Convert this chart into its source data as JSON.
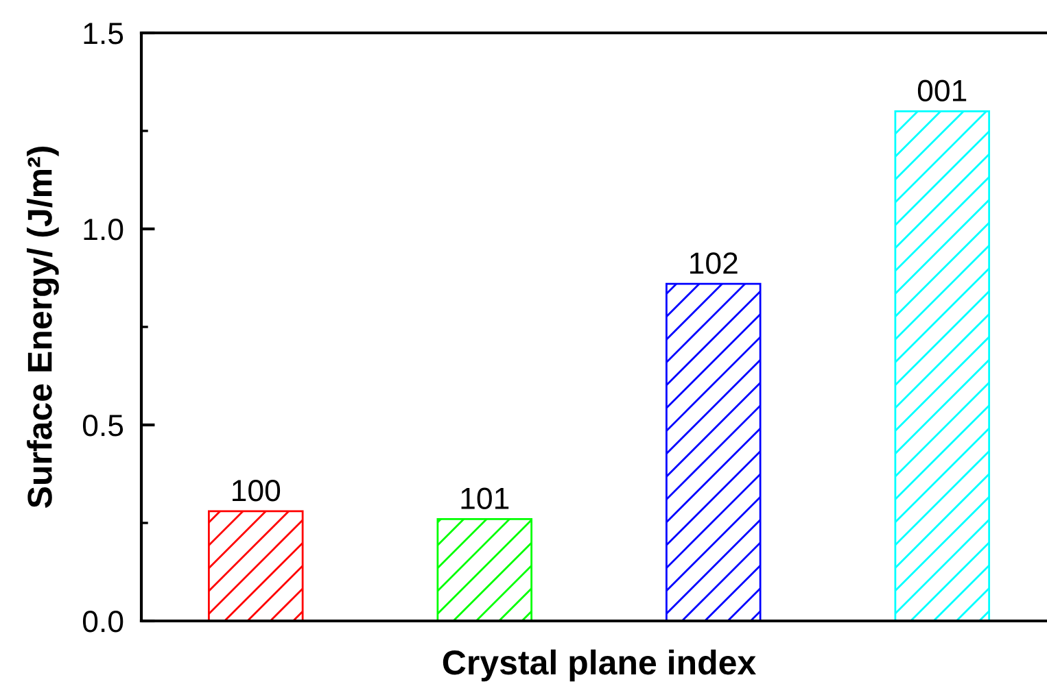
{
  "chart_data": {
    "type": "bar",
    "xlabel": "Crystal plane index",
    "ylabel": "Surface Energy/ (J/m²)",
    "categories": [
      "100",
      "101",
      "102",
      "001"
    ],
    "values": [
      0.28,
      0.26,
      0.86,
      1.3
    ],
    "colors": [
      "#ff0000",
      "#00ff00",
      "#0000ff",
      "#00ffff"
    ],
    "ylim": [
      0,
      1.5
    ],
    "yticks": [
      {
        "value": 0,
        "label": "0.0"
      },
      0.5,
      {
        "value": 1,
        "label": "1.0"
      },
      1.5
    ],
    "tick_labels": "y"
  }
}
